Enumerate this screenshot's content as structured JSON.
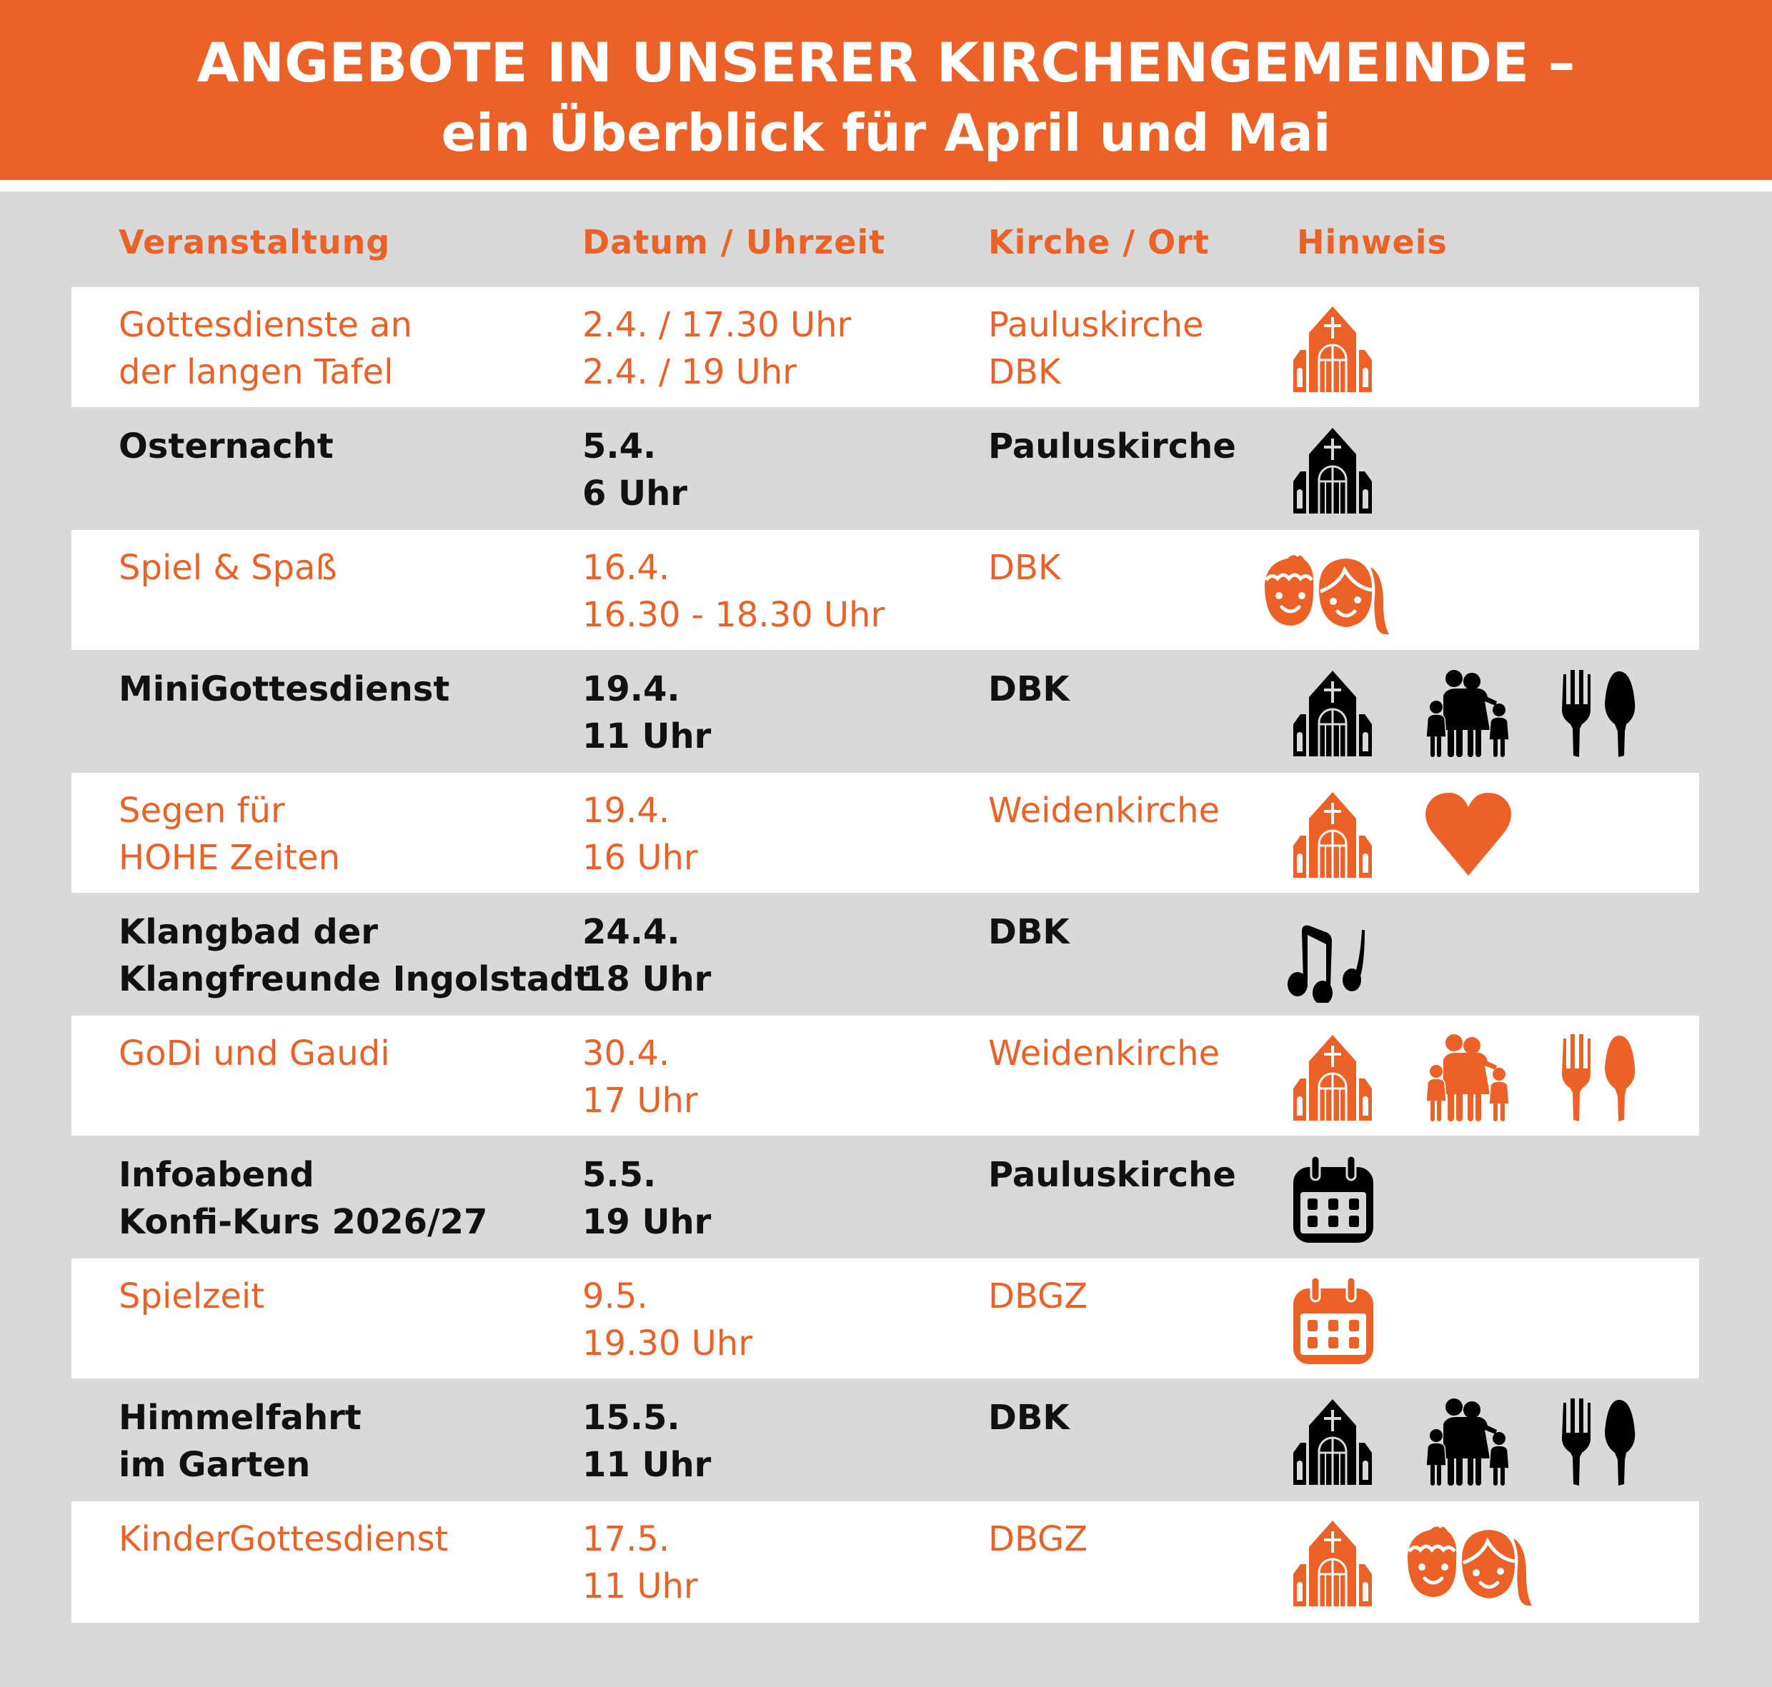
{
  "header": {
    "title_line1": "ANGEBOTE IN UNSERER KIRCHENGEMEINDE –",
    "title_line2": "ein Überblick für April und Mai"
  },
  "colors": {
    "accent": "#ea6228",
    "background": "#d9d9d9",
    "row_white": "#ffffff",
    "dark_text": "#111111"
  },
  "columns": {
    "event": "Veranstaltung",
    "datetime": "Datum / Uhrzeit",
    "place": "Kirche / Ort",
    "note": "Hinweis"
  },
  "rows": [
    {
      "event": [
        "Gottesdienste an",
        "der langen Tafel"
      ],
      "datetime": [
        "2.4. / 17.30 Uhr",
        "2.4. / 19 Uhr"
      ],
      "place": [
        "Pauluskirche",
        "DBK"
      ],
      "icons": [
        "church-icon"
      ]
    },
    {
      "event": [
        "Osternacht"
      ],
      "datetime": [
        "5.4.",
        "6 Uhr"
      ],
      "place": [
        "Pauluskirche"
      ],
      "icons": [
        "church-icon"
      ]
    },
    {
      "event": [
        "Spiel & Spaß"
      ],
      "datetime": [
        "16.4.",
        "16.30 - 18.30 Uhr"
      ],
      "place": [
        "DBK"
      ],
      "icons": [
        "children-icon"
      ]
    },
    {
      "event": [
        "MiniGottesdienst"
      ],
      "datetime": [
        "19.4.",
        "11 Uhr"
      ],
      "place": [
        "DBK"
      ],
      "icons": [
        "church-icon",
        "family-icon",
        "fork-spoon-icon"
      ]
    },
    {
      "event": [
        "Segen für",
        "HOHE Zeiten"
      ],
      "datetime": [
        "19.4.",
        "16 Uhr"
      ],
      "place": [
        "Weidenkirche"
      ],
      "icons": [
        "church-icon",
        "heart-icon"
      ]
    },
    {
      "event": [
        "Klangbad der",
        "Klangfreunde Ingolstadt"
      ],
      "datetime": [
        "24.4.",
        "18 Uhr"
      ],
      "place": [
        "DBK"
      ],
      "icons": [
        "music-notes-icon"
      ]
    },
    {
      "event": [
        "GoDi und Gaudi"
      ],
      "datetime": [
        "30.4.",
        "17 Uhr"
      ],
      "place": [
        "Weidenkirche"
      ],
      "icons": [
        "church-icon",
        "family-icon",
        "fork-spoon-icon"
      ]
    },
    {
      "event": [
        "Infoabend",
        "Konfi-Kurs 2026/27"
      ],
      "datetime": [
        "5.5.",
        "19 Uhr"
      ],
      "place": [
        "Pauluskirche"
      ],
      "icons": [
        "calendar-icon"
      ]
    },
    {
      "event": [
        "Spielzeit"
      ],
      "datetime": [
        "9.5.",
        "19.30 Uhr"
      ],
      "place": [
        "DBGZ"
      ],
      "icons": [
        "calendar-icon"
      ]
    },
    {
      "event": [
        "Himmelfahrt",
        "im Garten"
      ],
      "datetime": [
        "15.5.",
        "11 Uhr"
      ],
      "place": [
        "DBK"
      ],
      "icons": [
        "church-icon",
        "family-icon",
        "fork-spoon-icon"
      ]
    },
    {
      "event": [
        "KinderGottesdienst"
      ],
      "datetime": [
        "17.5.",
        "11 Uhr"
      ],
      "place": [
        "DBGZ"
      ],
      "icons": [
        "church-icon",
        "children-icon"
      ]
    }
  ]
}
